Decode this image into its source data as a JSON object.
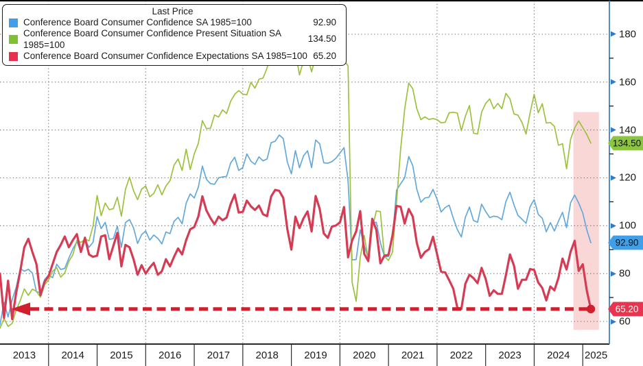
{
  "chart_data": {
    "type": "line",
    "title": "Last Price",
    "frequency": "monthly",
    "x_start": "2013-01",
    "x_end": "2025-03",
    "years": [
      "2013",
      "2014",
      "2015",
      "2016",
      "2017",
      "2018",
      "2019",
      "2020",
      "2021",
      "2022",
      "2023",
      "2024",
      "2025"
    ],
    "y_axis": {
      "side": "right",
      "ticks": [
        180,
        160,
        140,
        120,
        100,
        80,
        60
      ],
      "minor_ticks": [
        170,
        150,
        130,
        110,
        90,
        70
      ],
      "axis_color": "#3579b8",
      "tick_arrow_color": "#2d7dc3"
    },
    "grid": {
      "horizontal": true,
      "vertical_every_years": 2,
      "style": "dotted",
      "color": "#6e6e6e"
    },
    "legend": {
      "title": "Last Price",
      "position": "top-left"
    },
    "series": [
      {
        "name": "Conference Board Consumer Confidence SA 1985=100",
        "last_price": "92.90",
        "line_color": "#63a8da",
        "swatch_color": "#3f9fe8",
        "line_width": 1.7,
        "values": [
          58.6,
          68,
          61.9,
          69,
          74.3,
          82.1,
          81,
          81.8,
          80.2,
          72.4,
          72,
          77.5,
          79.4,
          78.3,
          83.9,
          81.7,
          82.2,
          86.4,
          90.3,
          93.4,
          89,
          94.1,
          91,
          93.1,
          103.8,
          98.8,
          101.4,
          94.3,
          94.6,
          99.8,
          91,
          101.3,
          102.6,
          99.1,
          92.6,
          96.3,
          97.8,
          94,
          96.1,
          94.7,
          92.4,
          97.4,
          96.7,
          101.8,
          103.5,
          100.8,
          109.4,
          113.3,
          111.6,
          116.1,
          124.9,
          119.4,
          117.6,
          117.3,
          120,
          120.4,
          120.6,
          126.2,
          128.6,
          123.1,
          124.3,
          130,
          127,
          125.6,
          128.8,
          127.1,
          127.9,
          134.7,
          135.3,
          137.9,
          136.4,
          126.6,
          121.7,
          131.4,
          124.2,
          129.2,
          131.3,
          124.3,
          135.8,
          134.2,
          126.3,
          126.1,
          126.8,
          128.2,
          130.4,
          132.6,
          118.8,
          85.7,
          85.9,
          98.3,
          91.7,
          86.3,
          101.3,
          101.4,
          92.9,
          87.1,
          87.1,
          95.2,
          114.9,
          117.5,
          120,
          128.9,
          125.1,
          115.2,
          109.8,
          111.6,
          111.9,
          115.2,
          111.1,
          105.7,
          107.6,
          108.6,
          103.2,
          98.4,
          95.3,
          103.6,
          107.8,
          102.2,
          101.4,
          109,
          106,
          103.4,
          104,
          103.7,
          102.5,
          110.1,
          114,
          108.7,
          104.3,
          102.7,
          101,
          108,
          110.9,
          104.8,
          103.1,
          97.5,
          101.3,
          97.8,
          101.9,
          105.6,
          99.2,
          109.6,
          112.8,
          109.5,
          105.3,
          98.3,
          92.9
        ]
      },
      {
        "name": "Conference Board Consumer Confidence Present Situation SA 1985=100",
        "last_price": "134.50",
        "line_color": "#9cc13c",
        "swatch_color": "#7fc131",
        "line_width": 1.7,
        "values": [
          57.2,
          61.2,
          57.9,
          59.2,
          64.8,
          68.7,
          73.6,
          70.9,
          73.5,
          72.6,
          70.1,
          75.3,
          77.3,
          81,
          82.5,
          78.5,
          80.3,
          85.1,
          87.9,
          93.9,
          93,
          94.4,
          93.7,
          99.9,
          112.6,
          104.2,
          109.5,
          106.7,
          107.1,
          111.9,
          104,
          115.1,
          120.3,
          114.6,
          110.9,
          115.3,
          116.6,
          112.1,
          113.5,
          117.1,
          112.9,
          116.6,
          118.8,
          125.3,
          127.9,
          123.1,
          132,
          123.5,
          130,
          134.4,
          143.9,
          140.6,
          140.7,
          146.3,
          145.4,
          148.4,
          146.9,
          152,
          154.9,
          156.5,
          155,
          154.7,
          159.9,
          157.5,
          161.2,
          161.7,
          165.9,
          172.8,
          169.4,
          171.1,
          173.6,
          169.9,
          170.2,
          172.8,
          163,
          169,
          170.7,
          164.3,
          170.9,
          176,
          170.6,
          173.1,
          166.9,
          170.5,
          175.9,
          169.3,
          166.7,
          76.4,
          68.4,
          86.7,
          95.9,
          85.8,
          98.9,
          106.2,
          105.9,
          87.2,
          85.5,
          89,
          110.1,
          131.9,
          148.7,
          159.6,
          157.2,
          148.9,
          144.3,
          145.5,
          144.4,
          144.8,
          144.3,
          143,
          143.2,
          147.2,
          147.4,
          147.1,
          139.7,
          145.8,
          150.2,
          138.7,
          138.3,
          147.4,
          151.1,
          153,
          148.9,
          151.1,
          148.9,
          155.3,
          153,
          146.7,
          146.2,
          143.1,
          138.3,
          147.2,
          154.9,
          147.2,
          151,
          142.9,
          143.1,
          141.5,
          133.6,
          134.3,
          123.8,
          136.1,
          140.9,
          143.8,
          141,
          138.1,
          134.5
        ]
      },
      {
        "name": "Conference Board Consumer Confidence Expectations SA 1985=100",
        "last_price": "65.20",
        "line_color": "#d63b54",
        "swatch_color": "#e8304e",
        "line_width": 3.2,
        "values": [
          80,
          61.5,
          77,
          61,
          72,
          81,
          91,
          94.5,
          89,
          84,
          71,
          76.5,
          79,
          84,
          89,
          92,
          95.5,
          91,
          94,
          96.5,
          89,
          95,
          88,
          87,
          87.5,
          95.5,
          96,
          86,
          91.5,
          97,
          83,
          92,
          91,
          86,
          79.5,
          83.5,
          80,
          82.5,
          84.5,
          79.5,
          81,
          86,
          83,
          87,
          90.5,
          88,
          94,
          98.5,
          99.5,
          103.8,
          112.3,
          106.4,
          103.2,
          100.6,
          103.8,
          102.3,
          103.4,
          109,
          113,
          105.5,
          105.8,
          110.5,
          108.1,
          106.6,
          108.4,
          104.8,
          104,
          112.2,
          115,
          114.6,
          111.6,
          98.6,
          90,
          103.8,
          99,
          103.1,
          106,
          97.6,
          112.4,
          107,
          96.8,
          94.9,
          99.6,
          100.1,
          101.4,
          107.8,
          86.8,
          93.8,
          97.6,
          106.1,
          88.2,
          85.2,
          102.9,
          98.2,
          84.3,
          87.5,
          87.8,
          96,
          108.3,
          107.9,
          100.9,
          107,
          103.8,
          92.8,
          86.6,
          89,
          90.2,
          95.4,
          88.1,
          80.8,
          80.5,
          77.2,
          73.7,
          65.8,
          65.2,
          75.8,
          79.5,
          78.1,
          76,
          82.4,
          77.8,
          70.7,
          73,
          71.5,
          71.5,
          79.3,
          88,
          83.3,
          73.7,
          77.4,
          77.4,
          81.9,
          81.5,
          76.3,
          74,
          68.8,
          74.6,
          73,
          78.2,
          86.3,
          81.7,
          89.1,
          93.7,
          81.1,
          83.9,
          72.9,
          65.2
        ]
      }
    ],
    "badges": [
      {
        "text": "92.90",
        "value": 92.9,
        "bg": "#3f9fe8",
        "fg": "#101010"
      },
      {
        "text": "134.50",
        "value": 134.5,
        "bg": "#8cc63e",
        "fg": "#101010"
      },
      {
        "text": "65.20",
        "value": 65.2,
        "bg": "#e8344e",
        "fg": "#ffffff"
      }
    ],
    "annotations": {
      "dashed_line": {
        "level": 65.2,
        "color": "#d0202e",
        "arrow_direction": "left",
        "dot_at_end": true
      },
      "highlight_band": {
        "from_month": 141.7,
        "to_month": 148,
        "value_top": 147.5,
        "value_bottom": 56.5,
        "color": "rgba(237,130,128,0.32)"
      }
    }
  }
}
